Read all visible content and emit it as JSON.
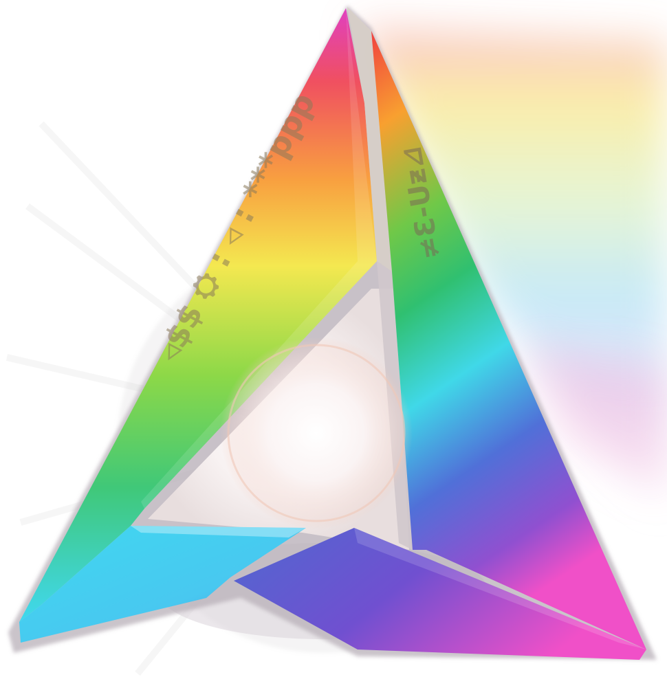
{
  "image": {
    "description_free": true,
    "subject": "rainbow-triangle-logo",
    "glyph_strips": {
      "left_face": "◃$$ ⛭ : ◃ : ***ppp",
      "right_face": "≠Ɛ-Uƶ⊿"
    },
    "colors": {
      "magenta": "#e040c0",
      "red": "#f04050",
      "orange": "#f8a030",
      "yellow": "#f4e850",
      "green": "#48c860",
      "cyan": "#40d8f0",
      "blue": "#5068d0",
      "violet": "#9050d0",
      "pink": "#f050c8",
      "inner_light": "#f2eaea",
      "outline": "#b8b0b8"
    }
  }
}
